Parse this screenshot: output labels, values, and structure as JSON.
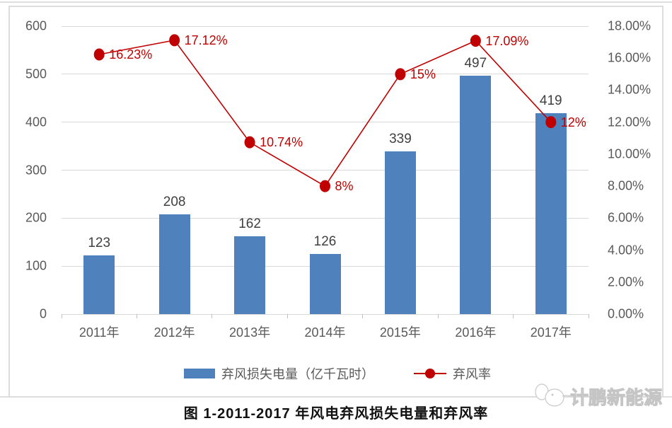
{
  "chart_data": {
    "type": "bar+line combo",
    "categories": [
      "2011年",
      "2012年",
      "2013年",
      "2014年",
      "2015年",
      "2016年",
      "2017年"
    ],
    "series": [
      {
        "name": "弃风损失电量（亿千瓦时）",
        "type": "bar",
        "axis": "left",
        "values": [
          123,
          208,
          162,
          126,
          339,
          497,
          419
        ],
        "labels": [
          "123",
          "208",
          "162",
          "126",
          "339",
          "497",
          "419"
        ],
        "color": "#4f81bd"
      },
      {
        "name": "弃风率",
        "type": "line",
        "axis": "right",
        "values": [
          16.23,
          17.12,
          10.74,
          8,
          15,
          17.09,
          12
        ],
        "labels": [
          "16.23%",
          "17.12%",
          "10.74%",
          "8%",
          "15%",
          "17.09%",
          "12%"
        ],
        "color": "#c00000"
      }
    ],
    "left_axis": {
      "min": 0,
      "max": 600,
      "step": 100,
      "ticks": [
        "0",
        "100",
        "200",
        "300",
        "400",
        "500",
        "600"
      ]
    },
    "right_axis": {
      "min": 0,
      "max": 18,
      "step": 2,
      "ticks": [
        "0.00%",
        "2.00%",
        "4.00%",
        "6.00%",
        "8.00%",
        "10.00%",
        "12.00%",
        "14.00%",
        "16.00%",
        "18.00%"
      ]
    },
    "grid": true,
    "legend_position": "bottom",
    "title": "图 1-2011-2017 年风电弃风损失电量和弃风率"
  },
  "legend": {
    "bar_label": "弃风损失电量（亿千瓦时）",
    "line_label": "弃风率"
  },
  "caption": "图  1-2011-2017 年风电弃风损失电量和弃风率",
  "watermark": "计鹏新能源",
  "colors": {
    "bar": "#4f81bd",
    "line": "#c00000",
    "grid": "#d9d9d9",
    "axis_text": "#595959",
    "bar_label_text": "#404040",
    "border": "#dcdcdc"
  }
}
